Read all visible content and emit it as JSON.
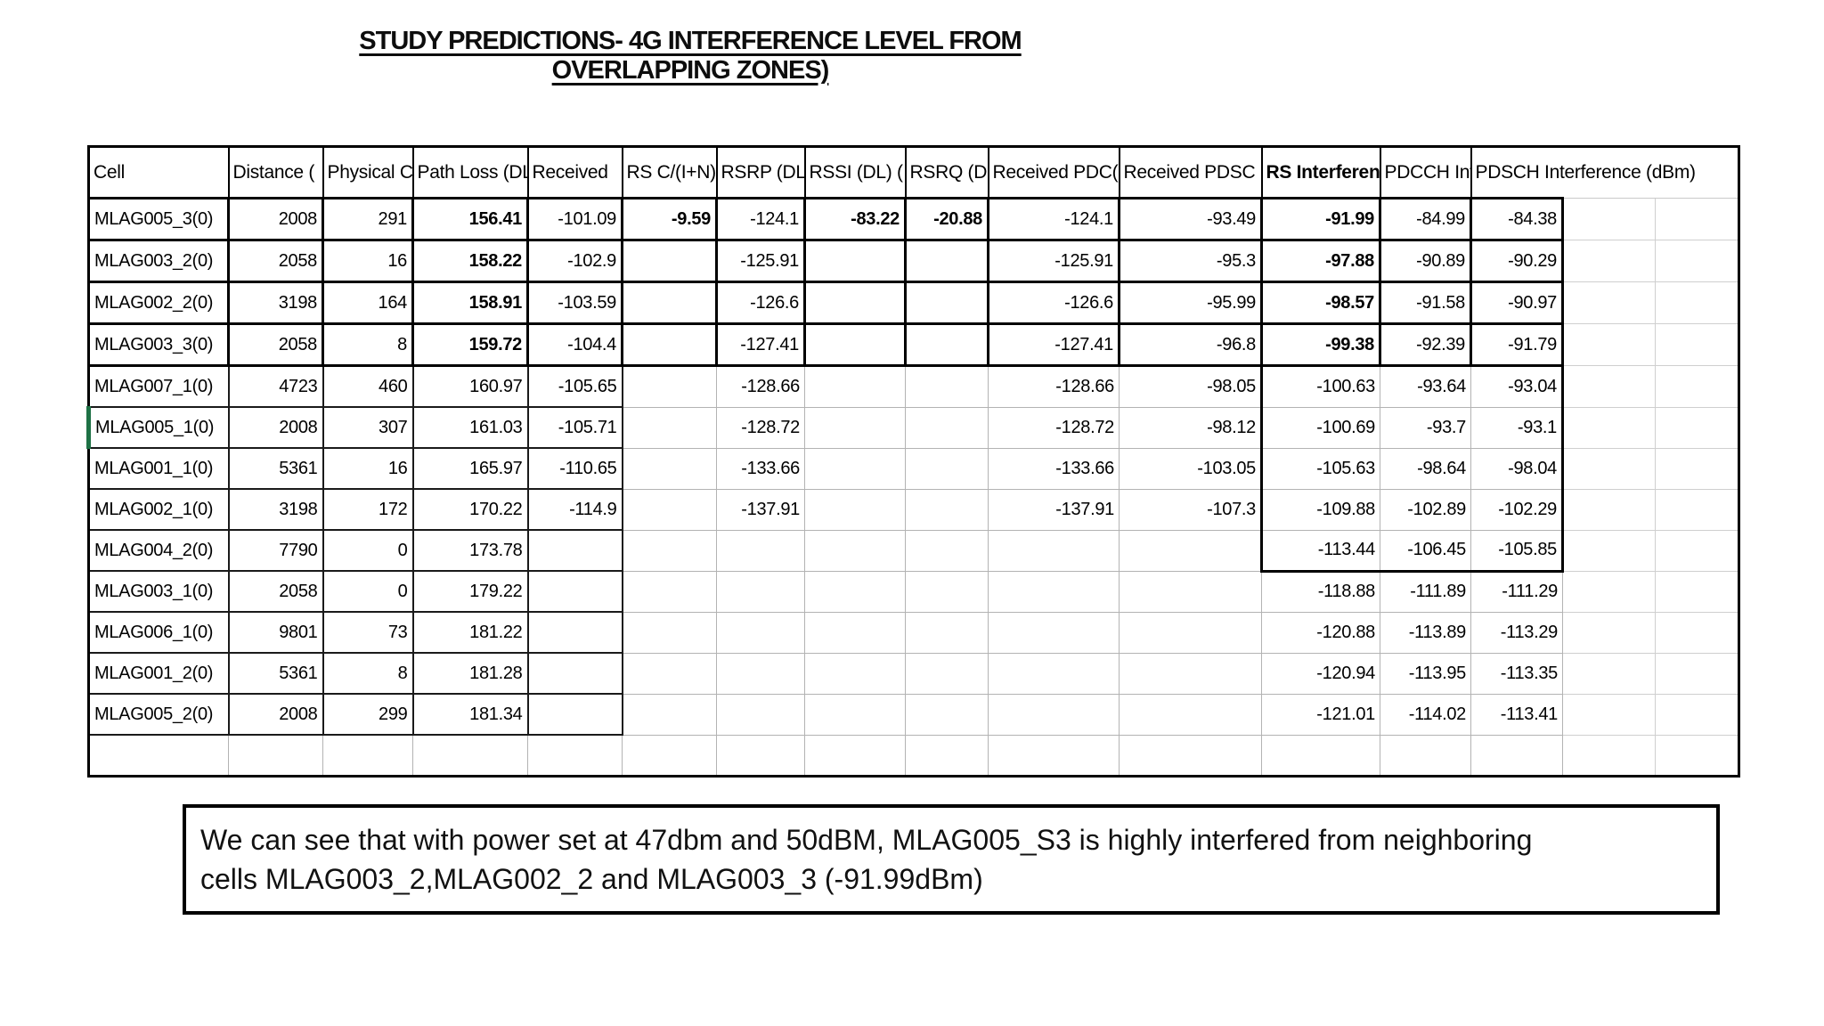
{
  "slide": {
    "title_line1": "STUDY PREDICTIONS- 4G INTERFERENCE LEVEL FROM",
    "title_line2": "OVERLAPPING ZONES)",
    "caption_line1": "We can see that with power set at 47dbm and 50dBM, MLAG005_S3 is highly interfered from neighboring",
    "caption_line2": "cells MLAG003_2,MLAG002_2 and MLAG003_3 (-91.99dBm)"
  },
  "table": {
    "headers": [
      "Cell",
      "Distance (",
      "Physical C",
      "Path Loss (DL",
      "Received",
      "RS C/(I+N)",
      "RSRP (DL)",
      "RSSI (DL) (",
      "RSRQ (DL)",
      "Received PDC(",
      "Received PDSC",
      "RS Interferen",
      "PDCCH Int",
      "PDSCH Interference (dBm)"
    ],
    "rows": [
      [
        "MLAG005_3(0)",
        "2008",
        "291",
        "156.41",
        "-101.09",
        "-9.59",
        "-124.1",
        "-83.22",
        "-20.88",
        "-124.1",
        "-93.49",
        "-91.99",
        "-84.99",
        "-84.38"
      ],
      [
        "MLAG003_2(0)",
        "2058",
        "16",
        "158.22",
        "-102.9",
        "",
        "-125.91",
        "",
        "",
        "-125.91",
        "-95.3",
        "-97.88",
        "-90.89",
        "-90.29"
      ],
      [
        "MLAG002_2(0)",
        "3198",
        "164",
        "158.91",
        "-103.59",
        "",
        "-126.6",
        "",
        "",
        "-126.6",
        "-95.99",
        "-98.57",
        "-91.58",
        "-90.97"
      ],
      [
        "MLAG003_3(0)",
        "2058",
        "8",
        "159.72",
        "-104.4",
        "",
        "-127.41",
        "",
        "",
        "-127.41",
        "-96.8",
        "-99.38",
        "-92.39",
        "-91.79"
      ],
      [
        "MLAG007_1(0)",
        "4723",
        "460",
        "160.97",
        "-105.65",
        "",
        "-128.66",
        "",
        "",
        "-128.66",
        "-98.05",
        "-100.63",
        "-93.64",
        "-93.04"
      ],
      [
        "MLAG005_1(0)",
        "2008",
        "307",
        "161.03",
        "-105.71",
        "",
        "-128.72",
        "",
        "",
        "-128.72",
        "-98.12",
        "-100.69",
        "-93.7",
        "-93.1"
      ],
      [
        "MLAG001_1(0)",
        "5361",
        "16",
        "165.97",
        "-110.65",
        "",
        "-133.66",
        "",
        "",
        "-133.66",
        "-103.05",
        "-105.63",
        "-98.64",
        "-98.04"
      ],
      [
        "MLAG002_1(0)",
        "3198",
        "172",
        "170.22",
        "-114.9",
        "",
        "-137.91",
        "",
        "",
        "-137.91",
        "-107.3",
        "-109.88",
        "-102.89",
        "-102.29"
      ],
      [
        "MLAG004_2(0)",
        "7790",
        "0",
        "173.78",
        "",
        "",
        "",
        "",
        "",
        "",
        "",
        "-113.44",
        "-106.45",
        "-105.85"
      ],
      [
        "MLAG003_1(0)",
        "2058",
        "0",
        "179.22",
        "",
        "",
        "",
        "",
        "",
        "",
        "",
        "-118.88",
        "-111.89",
        "-111.29"
      ],
      [
        "MLAG006_1(0)",
        "9801",
        "73",
        "181.22",
        "",
        "",
        "",
        "",
        "",
        "",
        "",
        "-120.88",
        "-113.89",
        "-113.29"
      ],
      [
        "MLAG001_2(0)",
        "5361",
        "8",
        "181.28",
        "",
        "",
        "",
        "",
        "",
        "",
        "",
        "-120.94",
        "-113.95",
        "-113.35"
      ],
      [
        "MLAG005_2(0)",
        "2008",
        "299",
        "181.34",
        "",
        "",
        "",
        "",
        "",
        "",
        "",
        "-121.01",
        "-114.02",
        "-113.41"
      ],
      [
        "",
        "",
        "",
        "",
        "",
        "",
        "",
        "",
        "",
        "",
        "",
        "",
        "",
        ""
      ]
    ]
  },
  "colors": {
    "selection_green": "#1E7145",
    "grid_light": "#b3b3b3",
    "grid_dark": "#000000"
  }
}
